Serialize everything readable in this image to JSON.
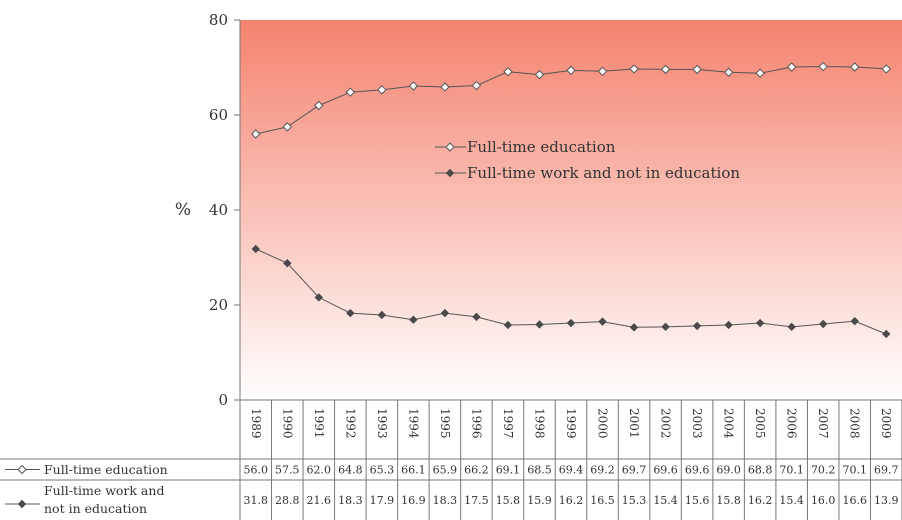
{
  "chart_data": {
    "type": "line",
    "x": [
      "1989",
      "1990",
      "1991",
      "1992",
      "1993",
      "1994",
      "1995",
      "1996",
      "1997",
      "1998",
      "1999",
      "2000",
      "2001",
      "2002",
      "2003",
      "2004",
      "2005",
      "2006",
      "2007",
      "2008",
      "2009"
    ],
    "series": [
      {
        "name": "Full-time education",
        "values": [
          56.0,
          57.5,
          62.0,
          64.8,
          65.3,
          66.1,
          65.9,
          66.2,
          69.1,
          68.5,
          69.4,
          69.2,
          69.7,
          69.6,
          69.6,
          69.0,
          68.8,
          70.1,
          70.2,
          70.1,
          69.7
        ],
        "labels": [
          "56.0",
          "57.5",
          "62.0",
          "64.8",
          "65.3",
          "66.1",
          "65.9",
          "66.2",
          "69.1",
          "68.5",
          "69.4",
          "69.2",
          "69.7",
          "69.6",
          "69.6",
          "69.0",
          "68.8",
          "70.1",
          "70.2",
          "70.1",
          "69.7"
        ],
        "marker": "open-diamond",
        "table_label_lines": [
          "Full-time education"
        ]
      },
      {
        "name": "Full-time work and not in education",
        "values": [
          31.8,
          28.8,
          21.6,
          18.3,
          17.9,
          16.9,
          18.3,
          17.5,
          15.8,
          15.9,
          16.2,
          16.5,
          15.3,
          15.4,
          15.6,
          15.8,
          16.2,
          15.4,
          16.0,
          16.6,
          13.9
        ],
        "labels": [
          "31.8",
          "28.8",
          "21.6",
          "18.3",
          "17.9",
          "16.9",
          "18.3",
          "17.5",
          "15.8",
          "15.9",
          "16.2",
          "16.5",
          "15.3",
          "15.4",
          "15.6",
          "15.8",
          "16.2",
          "15.4",
          "16.0",
          "16.6",
          "13.9"
        ],
        "marker": "filled-diamond",
        "table_label_lines": [
          "Full-time work and",
          "not in education"
        ]
      }
    ],
    "ylabel": "%",
    "ylim": [
      0,
      80
    ],
    "yticks": [
      "0",
      "20",
      "40",
      "60",
      "80"
    ],
    "legend_position": "center",
    "colors": {
      "gradient_top": "#f4836f",
      "gradient_bottom": "#ffffff",
      "line": "#555555",
      "marker_fill_open": "#ffffff",
      "marker_fill_solid": "#4a4a4a"
    }
  }
}
